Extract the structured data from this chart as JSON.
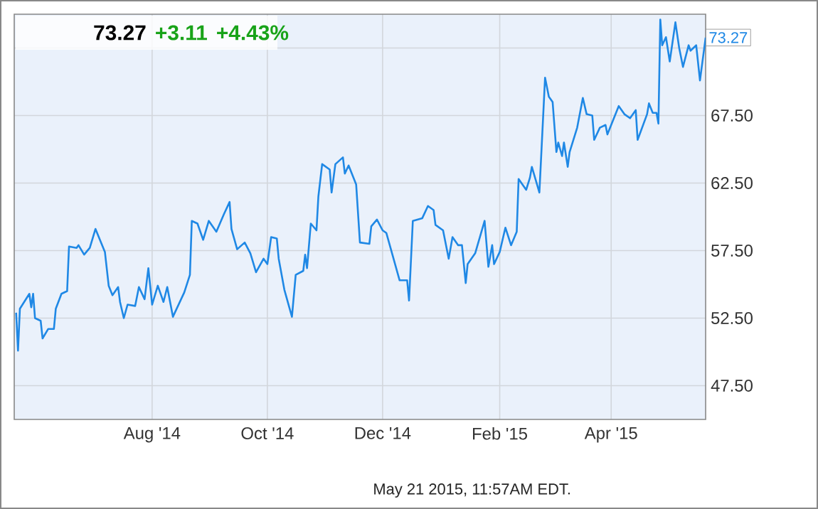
{
  "chart_data": {
    "type": "line",
    "color": "#1f88e5",
    "x": [
      "2014-05-21",
      "2014-05-22",
      "2014-05-23",
      "2014-05-28",
      "2014-05-29",
      "2014-05-30",
      "2014-05-31",
      "2014-06-03",
      "2014-06-04",
      "2014-06-07",
      "2014-06-10",
      "2014-06-11",
      "2014-06-14",
      "2014-06-17",
      "2014-06-18",
      "2014-06-22",
      "2014-06-23",
      "2014-06-26",
      "2014-06-29",
      "2014-07-02",
      "2014-07-07",
      "2014-07-09",
      "2014-07-11",
      "2014-07-14",
      "2014-07-15",
      "2014-07-17",
      "2014-07-19",
      "2014-07-23",
      "2014-07-25",
      "2014-07-28",
      "2014-07-30",
      "2014-08-01",
      "2014-08-04",
      "2014-08-07",
      "2014-08-09",
      "2014-08-12",
      "2014-08-18",
      "2014-08-21",
      "2014-08-22",
      "2014-08-25",
      "2014-08-28",
      "2014-08-31",
      "2014-09-04",
      "2014-09-08",
      "2014-09-11",
      "2014-09-12",
      "2014-09-15",
      "2014-09-19",
      "2014-09-22",
      "2014-09-25",
      "2014-09-29",
      "2014-10-01",
      "2014-10-03",
      "2014-10-06",
      "2014-10-07",
      "2014-10-10",
      "2014-10-14",
      "2014-10-16",
      "2014-10-20",
      "2014-10-21",
      "2014-10-22",
      "2014-10-24",
      "2014-10-27",
      "2014-10-28",
      "2014-10-30",
      "2014-11-03",
      "2014-11-04",
      "2014-11-06",
      "2014-11-10",
      "2014-11-11",
      "2014-11-13",
      "2014-11-17",
      "2014-11-19",
      "2014-11-24",
      "2014-11-25",
      "2014-11-28",
      "2014-12-01",
      "2014-12-03",
      "2014-12-08",
      "2014-12-10",
      "2014-12-14",
      "2014-12-15",
      "2014-12-17",
      "2014-12-22",
      "2014-12-25",
      "2014-12-28",
      "2014-12-29",
      "2015-01-02",
      "2015-01-05",
      "2015-01-07",
      "2015-01-10",
      "2015-01-12",
      "2015-01-14",
      "2015-01-15",
      "2015-01-19",
      "2015-01-24",
      "2015-01-26",
      "2015-01-28",
      "2015-01-29",
      "2015-02-01",
      "2015-02-04",
      "2015-02-07",
      "2015-02-10",
      "2015-02-11",
      "2015-02-15",
      "2015-02-17",
      "2015-02-18",
      "2015-02-22",
      "2015-02-25",
      "2015-02-27",
      "2015-03-01",
      "2015-03-03",
      "2015-03-04",
      "2015-03-06",
      "2015-03-07",
      "2015-03-09",
      "2015-03-10",
      "2015-03-14",
      "2015-03-17",
      "2015-03-19",
      "2015-03-22",
      "2015-03-23",
      "2015-03-26",
      "2015-03-29",
      "2015-03-30",
      "2015-04-05",
      "2015-04-08",
      "2015-04-11",
      "2015-04-14",
      "2015-04-15",
      "2015-04-20",
      "2015-04-21",
      "2015-04-23",
      "2015-04-25",
      "2015-04-26",
      "2015-04-27",
      "2015-04-28",
      "2015-04-30",
      "2015-05-02",
      "2015-05-05",
      "2015-05-07",
      "2015-05-09",
      "2015-05-12",
      "2015-05-13",
      "2015-05-16",
      "2015-05-18",
      "2015-05-21"
    ],
    "values": [
      52.9,
      50.1,
      53.2,
      54.3,
      53.3,
      54.3,
      52.5,
      52.3,
      51.0,
      51.7,
      51.7,
      53.2,
      54.3,
      54.5,
      57.8,
      57.7,
      57.9,
      57.2,
      57.7,
      59.1,
      57.4,
      54.9,
      54.2,
      54.8,
      53.7,
      52.5,
      53.5,
      53.4,
      54.8,
      53.9,
      56.2,
      53.5,
      54.9,
      53.7,
      54.8,
      52.6,
      54.4,
      55.7,
      59.7,
      59.5,
      58.3,
      59.7,
      58.9,
      60.2,
      61.1,
      59.1,
      57.6,
      58.1,
      57.3,
      55.9,
      56.9,
      56.5,
      58.5,
      58.4,
      56.9,
      54.6,
      52.6,
      55.7,
      56.0,
      57.2,
      56.2,
      59.5,
      59.0,
      61.5,
      63.9,
      63.5,
      61.8,
      63.9,
      64.4,
      63.2,
      63.8,
      62.4,
      58.1,
      58.0,
      59.3,
      59.8,
      59.0,
      58.8,
      56.3,
      55.3,
      55.3,
      53.8,
      59.7,
      59.9,
      60.8,
      60.5,
      59.4,
      59.0,
      56.9,
      58.5,
      57.9,
      57.9,
      55.1,
      56.5,
      57.3,
      59.7,
      56.3,
      57.9,
      56.5,
      57.4,
      59.2,
      57.9,
      58.9,
      62.8,
      62.0,
      62.9,
      63.7,
      61.8,
      70.3,
      68.9,
      68.5,
      64.8,
      65.5,
      64.5,
      65.5,
      63.7,
      64.8,
      66.6,
      68.8,
      67.6,
      67.5,
      65.7,
      66.6,
      66.8,
      66.1,
      68.2,
      67.6,
      67.3,
      67.9,
      65.7,
      67.6,
      68.4,
      67.7,
      67.7,
      66.9,
      74.6,
      72.7,
      73.3,
      71.5,
      74.4,
      72.5,
      71.1,
      72.7,
      72.3,
      72.7,
      70.1,
      73.27
    ],
    "xlim": [
      "2014-05-20",
      "2015-05-21"
    ],
    "xticks": [
      {
        "value": "2014-08-01",
        "label": "Aug '14"
      },
      {
        "value": "2014-10-01",
        "label": "Oct '14"
      },
      {
        "value": "2014-12-01",
        "label": "Dec '14"
      },
      {
        "value": "2015-02-01",
        "label": "Feb '15"
      },
      {
        "value": "2015-04-01",
        "label": "Apr '15"
      }
    ],
    "ylim": [
      45,
      75
    ],
    "yticks": [
      {
        "value": 47.5,
        "label": "47.50"
      },
      {
        "value": 52.5,
        "label": "52.50"
      },
      {
        "value": 57.5,
        "label": "57.50"
      },
      {
        "value": 62.5,
        "label": "62.50"
      },
      {
        "value": 67.5,
        "label": "67.50"
      },
      {
        "value": 72.5,
        "label": null
      }
    ],
    "grid": true,
    "annotations": [
      "73.27",
      "+3.11",
      "+4.43%",
      "May 21 2015, 11:57AM EDT.",
      {
        "text": "73.27",
        "x": "2015-05-21",
        "y": 73.27
      }
    ]
  }
}
